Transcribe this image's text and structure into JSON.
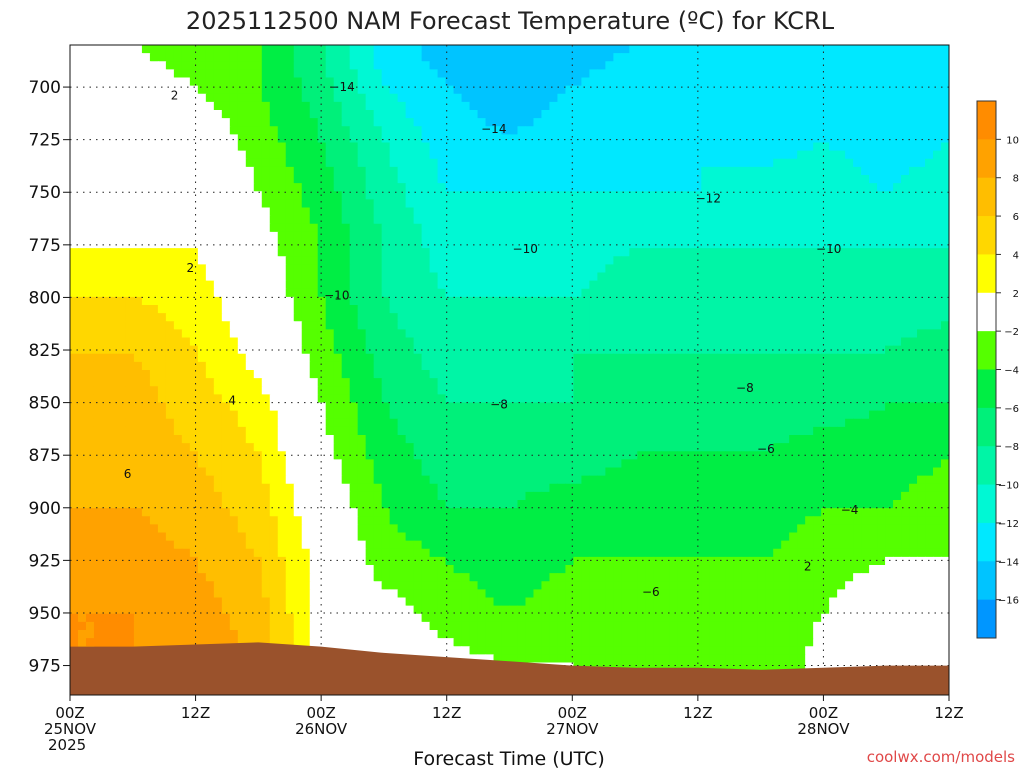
{
  "title": "2025112500 NAM Forecast Temperature (ºC) for KCRL",
  "credit": "coolwx.com/models",
  "colors": {
    "terrain": "#9a522c",
    "pos_contour": "#c0146e",
    "line": "#111111",
    "title_text": "#222222",
    "credit_text": "#e04848"
  },
  "chart_data": {
    "type": "heatmap",
    "title": "2025112500 NAM Forecast Temperature (ºC) for KCRL",
    "xlabel": "Forecast Time (UTC)",
    "ylabel": "",
    "x_hours_range": [
      0,
      84
    ],
    "x_ticks": [
      {
        "hour": 0,
        "lines": [
          "00Z",
          "25NOV",
          "2025"
        ]
      },
      {
        "hour": 12,
        "lines": [
          "12Z"
        ]
      },
      {
        "hour": 24,
        "lines": [
          "00Z",
          "26NOV"
        ]
      },
      {
        "hour": 36,
        "lines": [
          "12Z"
        ]
      },
      {
        "hour": 48,
        "lines": [
          "00Z",
          "27NOV"
        ]
      },
      {
        "hour": 60,
        "lines": [
          "12Z"
        ]
      },
      {
        "hour": 72,
        "lines": [
          "00Z",
          "28NOV"
        ]
      },
      {
        "hour": 84,
        "lines": [
          "12Z"
        ]
      }
    ],
    "y_range_hpa": [
      989,
      680
    ],
    "y_ticks": [
      700,
      725,
      750,
      775,
      800,
      825,
      850,
      875,
      900,
      925,
      950,
      975
    ],
    "grid": true,
    "colorbar": {
      "ticks": [
        10,
        8,
        6,
        4,
        2,
        -2,
        -4,
        -6,
        -8,
        -10,
        -12,
        -14,
        -16
      ],
      "bins": [
        {
          "range": [
            10,
            12
          ],
          "color": "#ff8c00"
        },
        {
          "range": [
            8,
            10
          ],
          "color": "#ffa200"
        },
        {
          "range": [
            6,
            8
          ],
          "color": "#ffbe00"
        },
        {
          "range": [
            4,
            6
          ],
          "color": "#ffd700"
        },
        {
          "range": [
            2,
            4
          ],
          "color": "#ffff00"
        },
        {
          "range": [
            -2,
            2
          ],
          "color": "#ffffff"
        },
        {
          "range": [
            -4,
            -2
          ],
          "color": "#55ff00"
        },
        {
          "range": [
            -6,
            -4
          ],
          "color": "#00ee44"
        },
        {
          "range": [
            -8,
            -6
          ],
          "color": "#00f07a"
        },
        {
          "range": [
            -10,
            -8
          ],
          "color": "#00f5a6"
        },
        {
          "range": [
            -12,
            -10
          ],
          "color": "#00f8d4"
        },
        {
          "range": [
            -14,
            -12
          ],
          "color": "#00e8ff"
        },
        {
          "range": [
            -16,
            -14
          ],
          "color": "#00c4ff"
        },
        {
          "range": [
            -18,
            -16
          ],
          "color": "#0096ff"
        }
      ]
    },
    "temperature_field": {
      "hours": [
        0,
        6,
        12,
        18,
        24,
        30,
        36,
        42,
        48,
        54,
        60,
        66,
        72,
        78,
        84
      ],
      "pressures_hpa": [
        680,
        700,
        725,
        750,
        775,
        800,
        825,
        850,
        875,
        900,
        925,
        950,
        975,
        989
      ],
      "values": [
        [
          -1,
          -2,
          -3,
          -4,
          -8,
          -13,
          -15,
          -16,
          -15,
          -14,
          -13,
          -13,
          -14,
          -14,
          -14
        ],
        [
          1,
          -1,
          -2,
          -4,
          -7,
          -12,
          -14,
          -15,
          -14,
          -13,
          -13,
          -13,
          -14,
          -14,
          -13
        ],
        [
          0,
          1,
          0,
          -3,
          -6,
          -10,
          -13,
          -14,
          -13,
          -13,
          -12,
          -13,
          -12,
          -13,
          -12
        ],
        [
          1,
          1,
          1,
          -2,
          -5,
          -9,
          -12,
          -12,
          -12,
          -12,
          -12,
          -11,
          -11,
          -12,
          -11
        ],
        [
          2,
          2,
          2,
          -1,
          -4,
          -8,
          -11,
          -11,
          -11,
          -10,
          -10,
          -10,
          -10,
          -10,
          -10
        ],
        [
          4,
          4,
          3,
          0,
          -4,
          -8,
          -10,
          -10,
          -10,
          -9,
          -9,
          -10,
          -9,
          -9,
          -9
        ],
        [
          6,
          6,
          4,
          1,
          -3,
          -7,
          -9,
          -9,
          -8,
          -8,
          -8,
          -8,
          -8,
          -8,
          -7
        ],
        [
          7,
          7,
          5,
          3,
          -2,
          -6,
          -8,
          -8,
          -8,
          -7,
          -7,
          -7,
          -7,
          -6,
          -6
        ],
        [
          7,
          7,
          6,
          4,
          -1,
          -5,
          -7,
          -7,
          -7,
          -6,
          -6,
          -6,
          -5,
          -5,
          -4
        ],
        [
          8,
          8,
          7,
          5,
          0,
          -4,
          -6,
          -6,
          -5,
          -5,
          -5,
          -5,
          -4,
          -4,
          -3
        ],
        [
          9,
          9,
          8,
          6,
          1,
          -3,
          -4,
          -5,
          -4,
          -4,
          -4,
          -4,
          -3,
          -2,
          -2
        ],
        [
          10,
          10,
          9,
          7,
          1,
          -1,
          -3,
          -4,
          -3,
          -3,
          -3,
          -4,
          -2,
          0,
          0
        ],
        [
          10,
          10,
          9,
          8,
          1,
          0,
          -1,
          -2,
          -2,
          -3,
          -3,
          -4,
          -1,
          0,
          -2
        ],
        [
          10,
          10,
          10,
          8,
          1,
          0,
          -1,
          -2,
          -2,
          -3,
          -3,
          -4,
          -1,
          0,
          -2
        ]
      ]
    },
    "terrain": {
      "hours": [
        0,
        6,
        12,
        18,
        24,
        30,
        36,
        42,
        48,
        54,
        60,
        66,
        72,
        78,
        84
      ],
      "surface_pressure_hpa": [
        966,
        966,
        965,
        964,
        966,
        969,
        971,
        973,
        975,
        976,
        976,
        977,
        976,
        975,
        975
      ]
    },
    "contour_labels": [
      {
        "text": "2",
        "hour": 10,
        "p": 704
      },
      {
        "text": "2",
        "hour": 11.5,
        "p": 786
      },
      {
        "text": "4",
        "hour": 15.5,
        "p": 849
      },
      {
        "text": "6",
        "hour": 5.5,
        "p": 884
      },
      {
        "text": "−14",
        "hour": 26,
        "p": 700
      },
      {
        "text": "−14",
        "hour": 40.5,
        "p": 720
      },
      {
        "text": "−12",
        "hour": 61,
        "p": 753
      },
      {
        "text": "−10",
        "hour": 43.5,
        "p": 777
      },
      {
        "text": "−10",
        "hour": 72.5,
        "p": 777
      },
      {
        "text": "−10",
        "hour": 25.5,
        "p": 799
      },
      {
        "text": "−8",
        "hour": 41,
        "p": 851
      },
      {
        "text": "−8",
        "hour": 64.5,
        "p": 843
      },
      {
        "text": "−6",
        "hour": 66.5,
        "p": 872
      },
      {
        "text": "−6",
        "hour": 55.5,
        "p": 940
      },
      {
        "text": "−4",
        "hour": 74.5,
        "p": 901
      },
      {
        "text": "2",
        "hour": 70.5,
        "p": 928
      }
    ]
  }
}
